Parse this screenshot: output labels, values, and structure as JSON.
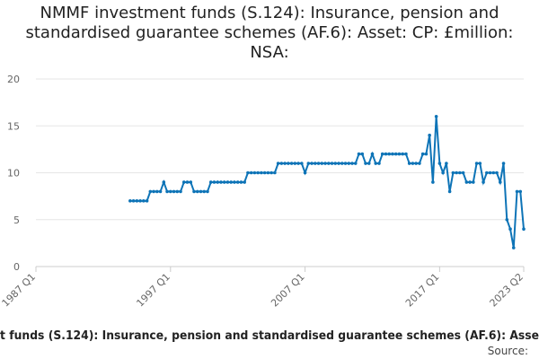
{
  "chart_data": {
    "type": "line",
    "title": "NMMF investment funds (S.124): Insurance, pension and standardised guarantee schemes (AF.6): Asset: CP: £million: NSA:",
    "footer": "t funds (S.124): Insurance, pension and standardised guarantee schemes (AF.6): Asse",
    "source": "Source:",
    "categories": [
      "1987 Q1",
      null,
      null,
      null,
      null,
      null,
      null,
      null,
      null,
      null,
      null,
      null,
      null,
      null,
      null,
      null,
      null,
      null,
      null,
      null,
      null,
      null,
      null,
      null,
      null,
      null,
      null,
      null,
      null,
      null,
      null,
      null,
      null,
      null,
      null,
      null,
      null,
      null,
      null,
      null,
      "1997 Q1",
      null,
      null,
      null,
      null,
      null,
      null,
      null,
      null,
      null,
      null,
      null,
      null,
      null,
      null,
      null,
      null,
      null,
      null,
      null,
      null,
      null,
      null,
      null,
      null,
      null,
      null,
      null,
      null,
      null,
      null,
      null,
      null,
      null,
      null,
      null,
      null,
      null,
      null,
      null,
      "2007 Q1",
      null,
      null,
      null,
      null,
      null,
      null,
      null,
      null,
      null,
      null,
      null,
      null,
      null,
      null,
      null,
      null,
      null,
      null,
      null,
      null,
      null,
      null,
      null,
      null,
      null,
      null,
      null,
      null,
      null,
      null,
      null,
      null,
      null,
      null,
      null,
      null,
      null,
      null,
      null,
      "2017 Q1",
      null,
      null,
      null,
      null,
      null,
      null,
      null,
      null,
      null,
      null,
      null,
      null,
      null,
      null,
      null,
      null,
      null,
      null,
      null,
      null,
      null,
      null,
      null,
      null,
      "2023 Q2"
    ],
    "series": [
      {
        "name": "NMMF investment funds (S.124): Insurance, pension and standardised guarantee schemes (AF.6): Asset: CP: £million: NSA:",
        "color": "#0e74b7",
        "values": [
          null,
          null,
          null,
          null,
          null,
          null,
          null,
          null,
          null,
          null,
          null,
          null,
          null,
          null,
          null,
          null,
          null,
          null,
          null,
          null,
          null,
          null,
          null,
          null,
          null,
          null,
          null,
          null,
          7,
          7,
          7,
          7,
          7,
          7,
          8,
          8,
          8,
          8,
          9,
          8,
          8,
          8,
          8,
          8,
          9,
          9,
          9,
          8,
          8,
          8,
          8,
          8,
          9,
          9,
          9,
          9,
          9,
          9,
          9,
          9,
          9,
          9,
          9,
          10,
          10,
          10,
          10,
          10,
          10,
          10,
          10,
          10,
          11,
          11,
          11,
          11,
          11,
          11,
          11,
          11,
          10,
          11,
          11,
          11,
          11,
          11,
          11,
          11,
          11,
          11,
          11,
          11,
          11,
          11,
          11,
          11,
          12,
          12,
          11,
          11,
          12,
          11,
          11,
          12,
          12,
          12,
          12,
          12,
          12,
          12,
          12,
          11,
          11,
          11,
          11,
          12,
          12,
          14,
          9,
          16,
          11,
          10,
          11,
          8,
          10,
          10,
          10,
          10,
          9,
          9,
          9,
          11,
          11,
          9,
          10,
          10,
          10,
          10,
          9,
          11,
          5,
          4,
          2,
          8,
          8,
          4
        ]
      }
    ],
    "ylim": [
      0,
      20
    ],
    "yticks": [
      0,
      5,
      10,
      15,
      20
    ],
    "grid": true
  }
}
